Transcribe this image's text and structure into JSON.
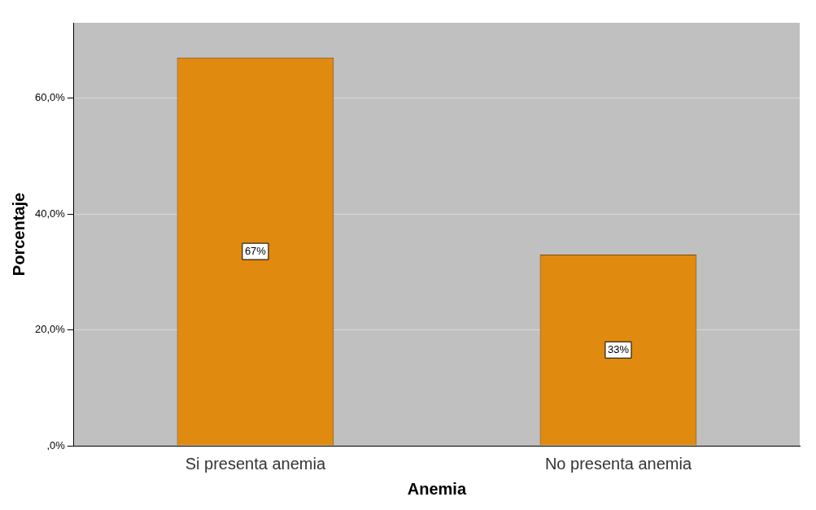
{
  "chart_data": {
    "type": "bar",
    "xlabel": "Anemia",
    "ylabel": "Porcentaje",
    "categories": [
      "Si presenta anemia",
      "No presenta anemia"
    ],
    "values": [
      67,
      33
    ],
    "value_labels": [
      "67%",
      "33%"
    ],
    "color": "#e08a10",
    "ylim": [
      0,
      73
    ],
    "yticks": [
      {
        "value": 0,
        "label": ",0%"
      },
      {
        "value": 20,
        "label": "20,0%"
      },
      {
        "value": 40,
        "label": "40,0%"
      },
      {
        "value": 60,
        "label": "60,0%"
      }
    ],
    "grid": "y",
    "legend": false
  }
}
